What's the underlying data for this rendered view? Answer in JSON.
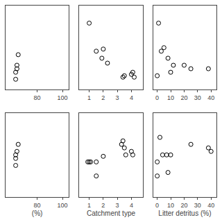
{
  "chart_data": [
    {
      "type": "scatter",
      "xlim": [
        55,
        105
      ],
      "ylim": [
        0,
        12
      ],
      "xticks": [
        80,
        100
      ],
      "yticks": [],
      "x": [
        63,
        63,
        64,
        64,
        65
      ],
      "values": [
        1.5,
        2.5,
        3.0,
        3.5,
        5.0
      ],
      "marker": "circle",
      "color": "black",
      "grid": false,
      "tick_labels": "x"
    },
    {
      "type": "scatter",
      "xlim": [
        0.3,
        4.8
      ],
      "ylim": [
        0,
        12
      ],
      "xticks": [
        1,
        2,
        3,
        4
      ],
      "yticks": [],
      "x": [
        1.0,
        1.5,
        2.0,
        1.9,
        2.3,
        3.4,
        3.5,
        4.0,
        4.1,
        4.2
      ],
      "values": [
        9.5,
        5.5,
        5.8,
        4.5,
        3.8,
        1.8,
        2.0,
        2.2,
        2.5,
        1.8
      ],
      "marker": "circle",
      "color": "black",
      "grid": false,
      "tick_labels": "x"
    },
    {
      "type": "scatter",
      "xlim": [
        -3,
        44
      ],
      "ylim": [
        0,
        12
      ],
      "xticks": [
        0,
        10,
        20,
        30,
        40
      ],
      "yticks": [],
      "x": [
        1,
        3,
        5,
        8,
        12,
        20,
        25,
        0,
        10,
        38
      ],
      "values": [
        9.5,
        5.5,
        6.0,
        4.5,
        3.5,
        3.5,
        3.0,
        2.0,
        2.5,
        3.0
      ],
      "marker": "circle",
      "color": "black",
      "grid": false,
      "tick_labels": "x"
    },
    {
      "type": "scatter",
      "x_label": "(%)",
      "xlim": [
        55,
        105
      ],
      "ylim": [
        0,
        12
      ],
      "xticks": [
        80,
        100
      ],
      "yticks": [],
      "x": [
        63,
        63,
        63,
        64,
        65
      ],
      "values": [
        4.5,
        5.5,
        6.0,
        6.5,
        7.5
      ],
      "marker": "circle",
      "color": "black",
      "grid": false,
      "tick_labels": "x"
    },
    {
      "type": "scatter",
      "x_label": "Catchment type",
      "xlim": [
        0.3,
        4.8
      ],
      "ylim": [
        0,
        12
      ],
      "xticks": [
        1,
        2,
        3,
        4
      ],
      "yticks": [],
      "x": [
        0.9,
        1.0,
        1.1,
        1.5,
        2.0,
        3.3,
        3.4,
        3.5,
        3.6,
        4.0,
        4.1,
        1.5
      ],
      "values": [
        5.0,
        5.0,
        5.0,
        5.0,
        5.8,
        7.5,
        8.0,
        7.0,
        6.0,
        6.5,
        6.0,
        3.0
      ],
      "marker": "circle",
      "color": "black",
      "grid": false,
      "tick_labels": "x"
    },
    {
      "type": "scatter",
      "x_label": "Litter detritus (%)",
      "xlim": [
        -3,
        44
      ],
      "ylim": [
        0,
        12
      ],
      "xticks": [
        0,
        10,
        20,
        30,
        40
      ],
      "yticks": [],
      "x": [
        2,
        4,
        7,
        10,
        0,
        25,
        38,
        0,
        8,
        40
      ],
      "values": [
        8.5,
        6.0,
        6.0,
        6.0,
        5.0,
        7.5,
        7.0,
        3.0,
        3.5,
        6.5
      ],
      "marker": "circle",
      "color": "black",
      "grid": false,
      "tick_labels": "x"
    }
  ]
}
